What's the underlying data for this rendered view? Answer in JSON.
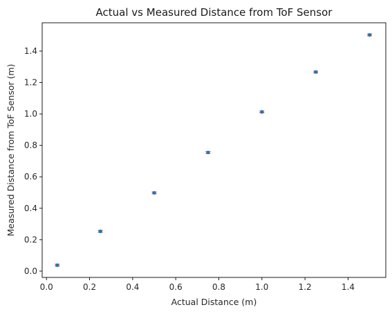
{
  "chart_data": {
    "type": "scatter",
    "title": "Actual vs Measured Distance from ToF Sensor",
    "xlabel": "Actual Distance (m)",
    "ylabel": "Measured Distance from ToF Sensor (m)",
    "xlim": [
      -0.02,
      1.575
    ],
    "ylim": [
      -0.04,
      1.58
    ],
    "xticks": [
      "0.0",
      "0.2",
      "0.4",
      "0.6",
      "0.8",
      "1.0",
      "1.2",
      "1.4"
    ],
    "yticks": [
      "0.0",
      "0.2",
      "0.4",
      "0.6",
      "0.8",
      "1.0",
      "1.2",
      "1.4"
    ],
    "grid": false,
    "points": [
      {
        "x": 0.05,
        "y": 0.038,
        "err": 0.006
      },
      {
        "x": 0.25,
        "y": 0.253,
        "err": 0.006
      },
      {
        "x": 0.5,
        "y": 0.498,
        "err": 0.006
      },
      {
        "x": 0.75,
        "y": 0.755,
        "err": 0.006
      },
      {
        "x": 1.0,
        "y": 1.013,
        "err": 0.006
      },
      {
        "x": 1.25,
        "y": 1.267,
        "err": 0.006
      },
      {
        "x": 1.5,
        "y": 1.503,
        "err": 0.006
      }
    ],
    "colors": {
      "marker": "#1f77b4",
      "errorbar": "#d62728"
    }
  }
}
